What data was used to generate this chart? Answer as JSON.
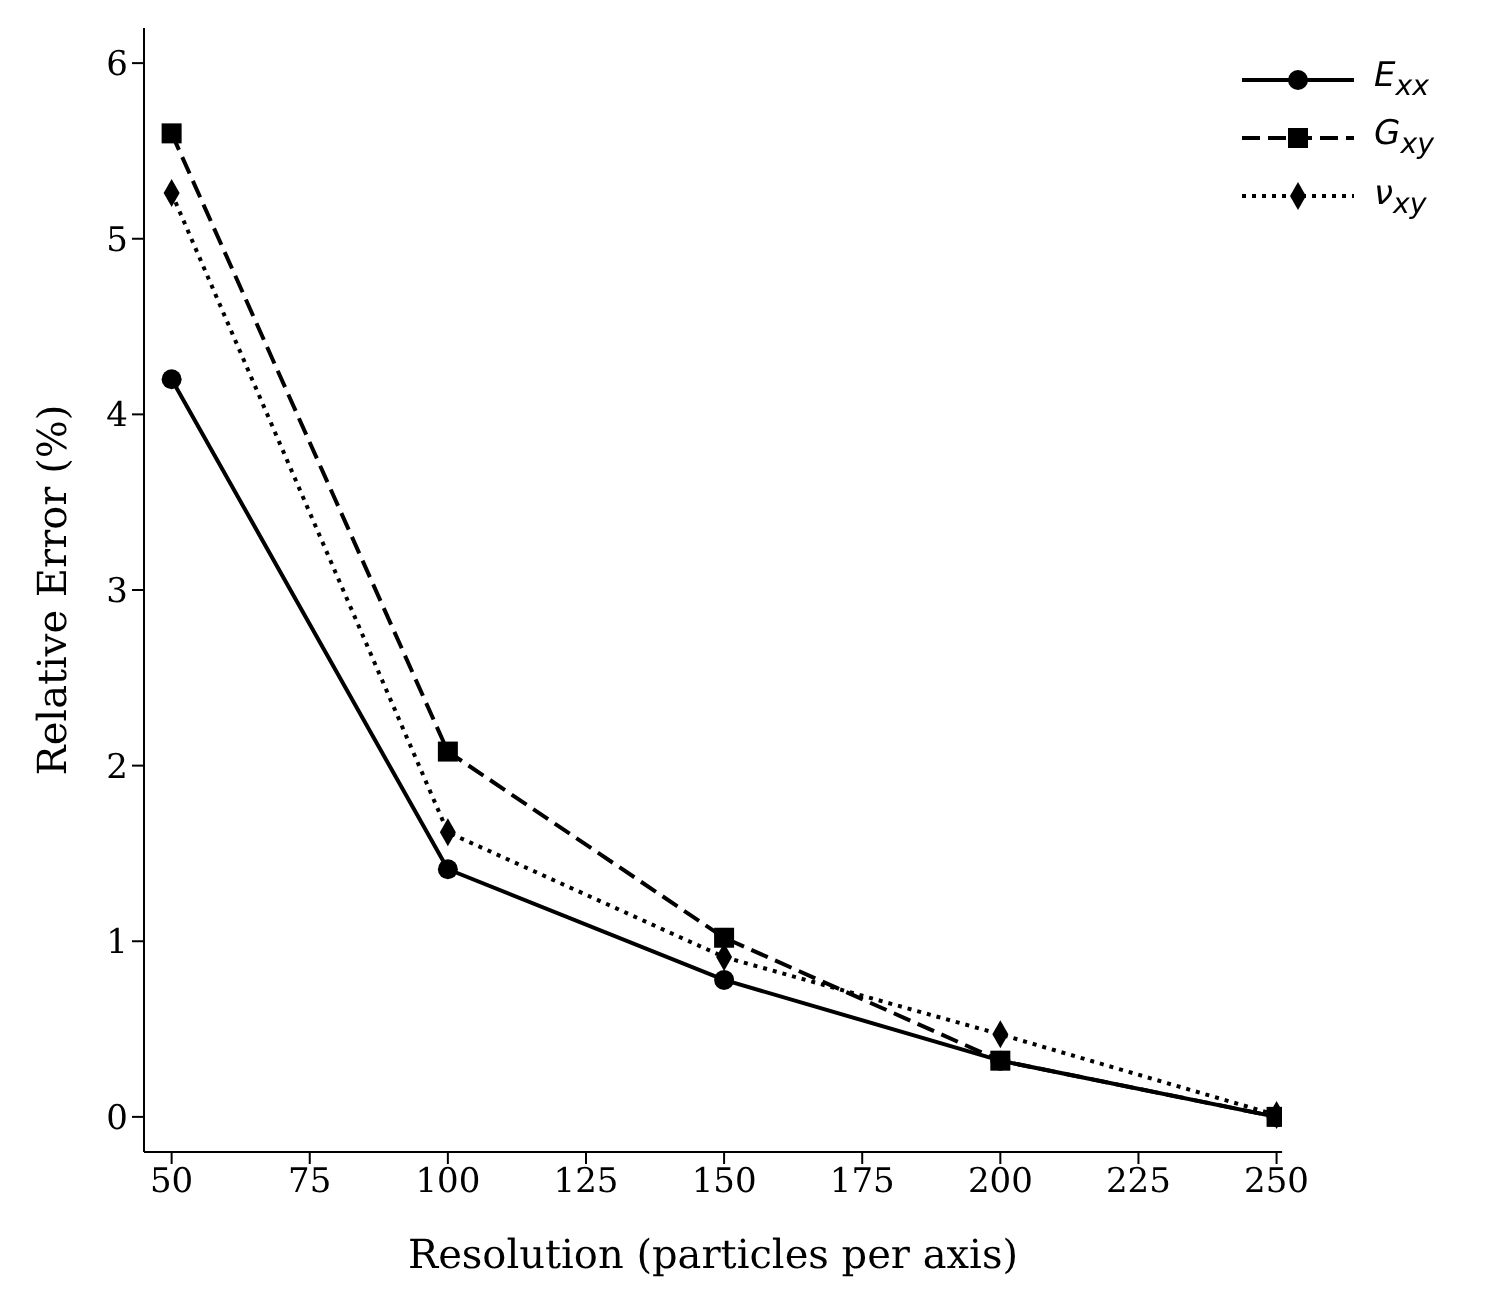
{
  "chart_data": {
    "type": "line",
    "xlabel": "Resolution (particles per axis)",
    "ylabel": "Relative Error (%)",
    "x": [
      50,
      100,
      150,
      200,
      250
    ],
    "series": [
      {
        "name": "E$_{xx}$",
        "color": "#000000",
        "marker": "circle",
        "line_style": "solid",
        "values": [
          4.2,
          1.41,
          0.78,
          0.32,
          0
        ]
      },
      {
        "name": "G$_{xy}$",
        "color": "#000000",
        "marker": "square",
        "line_style": "dashed",
        "values": [
          5.6,
          2.08,
          1.02,
          0.32,
          0
        ]
      },
      {
        "name": "ν$_{xy}$",
        "color": "#000000",
        "marker": "diamond",
        "line_style": "dotted",
        "values": [
          5.26,
          1.62,
          0.91,
          0.47,
          0.01
        ]
      }
    ],
    "xlim": [
      45,
      251
    ],
    "xticks": [
      50,
      75,
      100,
      125,
      150,
      175,
      200,
      225,
      250
    ],
    "ylim": [
      -0.2,
      6.2
    ],
    "yticks": [
      0,
      1,
      2,
      3,
      4,
      5,
      6
    ],
    "grid": false,
    "legend": "top right"
  }
}
